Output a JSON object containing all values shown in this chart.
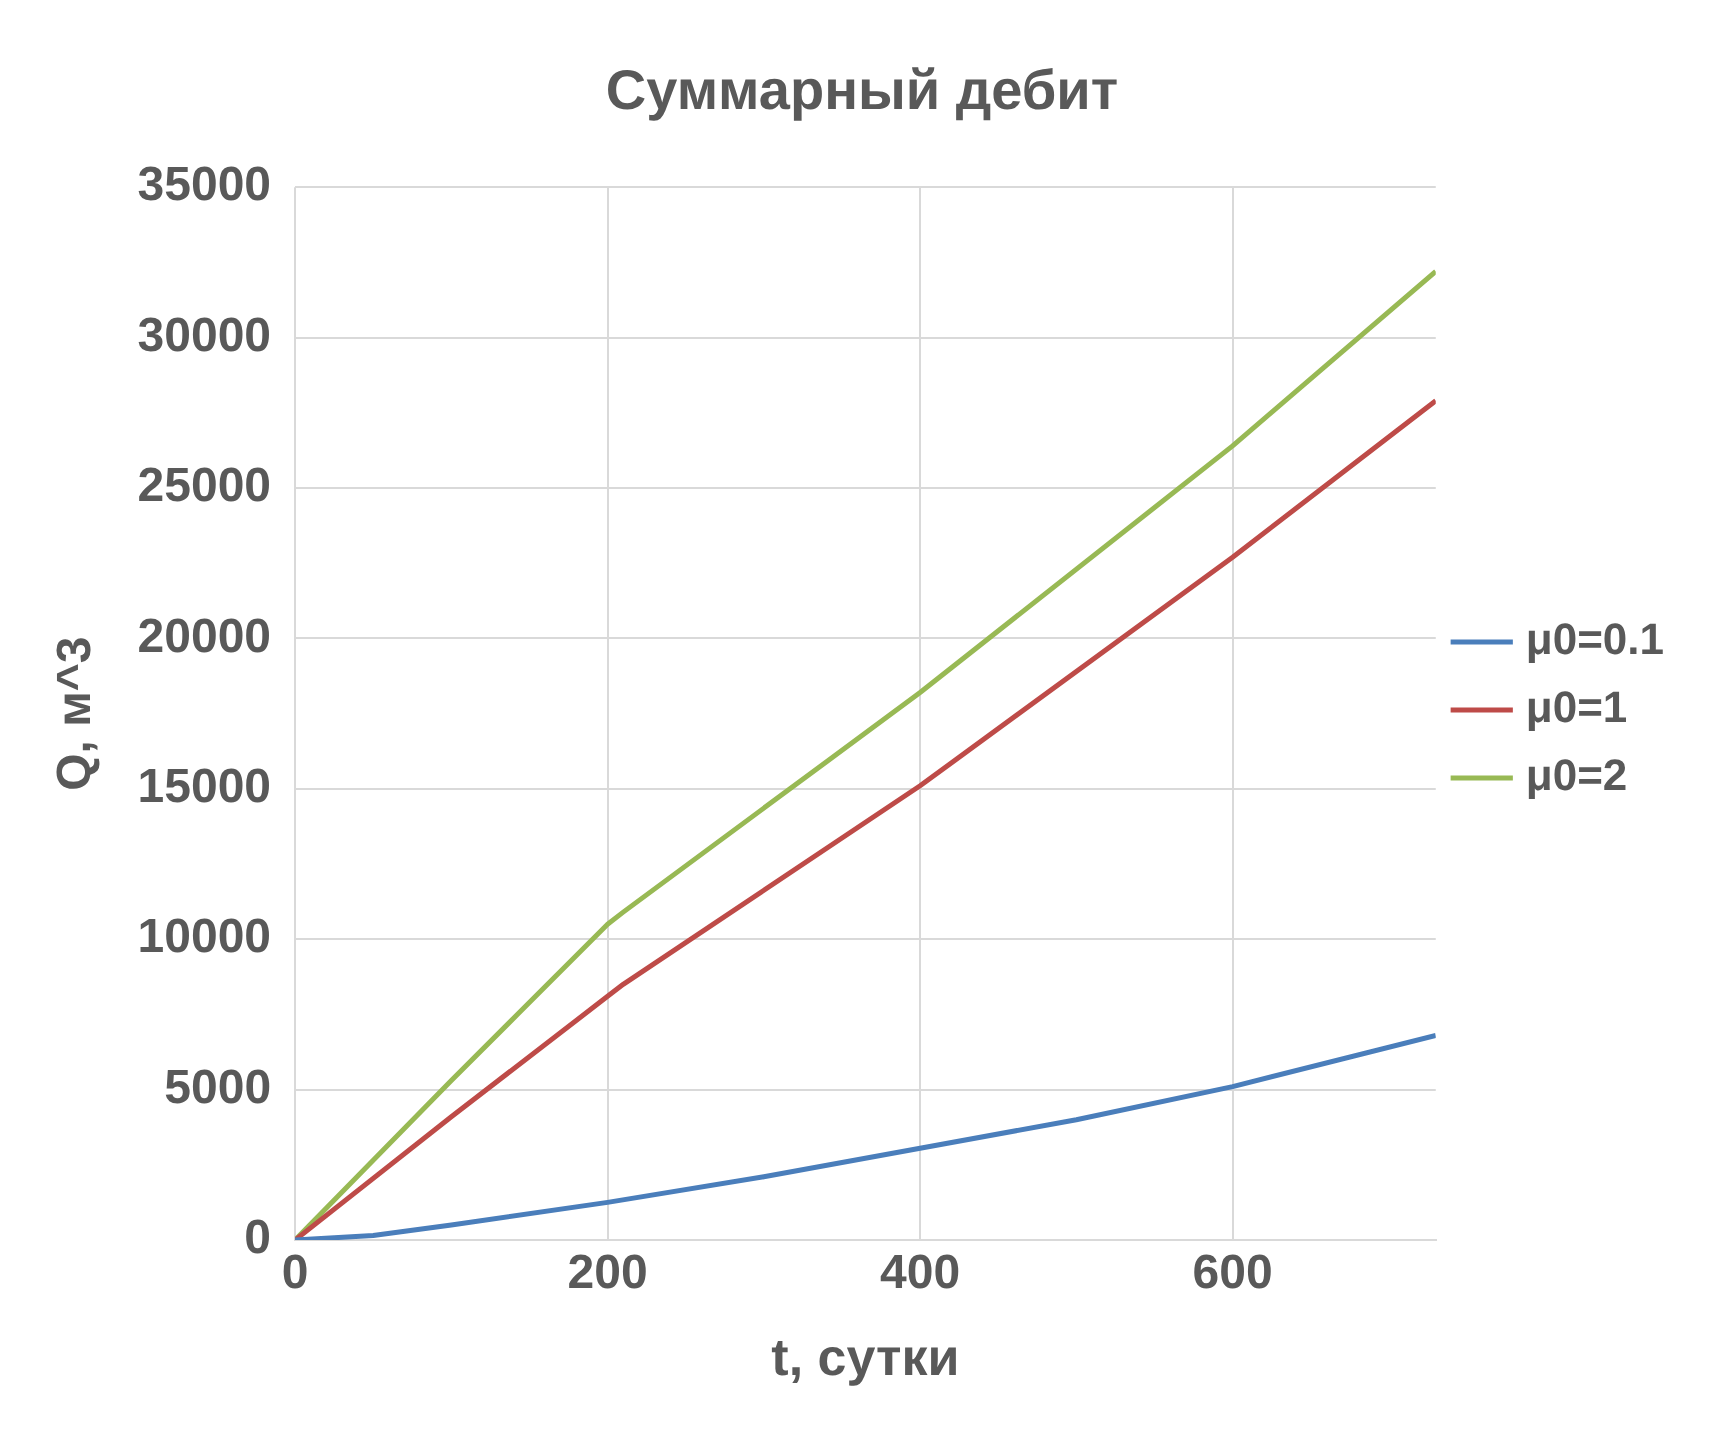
{
  "chart_data": {
    "type": "line",
    "title": "Суммарный дебит",
    "xlabel": "t, сутки",
    "ylabel": "Q, м^3",
    "xlim": [
      0,
      730
    ],
    "xticks": [
      0,
      200,
      400,
      600
    ],
    "ylim": [
      0,
      35000
    ],
    "yticks": [
      0,
      5000,
      10000,
      15000,
      20000,
      25000,
      30000,
      35000
    ],
    "grid": true,
    "legend": "right",
    "marker": "none",
    "line_style": "solid",
    "series": [
      {
        "name": "μ0=0.1",
        "color": "#4a7ebb",
        "x": [
          0,
          50,
          100,
          200,
          300,
          400,
          500,
          600,
          730
        ],
        "values": [
          0,
          150,
          500,
          1250,
          2100,
          3050,
          4000,
          5100,
          6800
        ]
      },
      {
        "name": "μ0=1",
        "color": "#be4b48",
        "x": [
          0,
          100,
          200,
          210,
          400,
          600,
          730
        ],
        "values": [
          0,
          4100,
          8100,
          8500,
          15100,
          22700,
          27900
        ]
      },
      {
        "name": "μ0=2",
        "color": "#98b954",
        "x": [
          0,
          100,
          200,
          210,
          400,
          600,
          730
        ],
        "values": [
          0,
          5300,
          10500,
          10900,
          18200,
          26400,
          32200
        ]
      }
    ]
  }
}
